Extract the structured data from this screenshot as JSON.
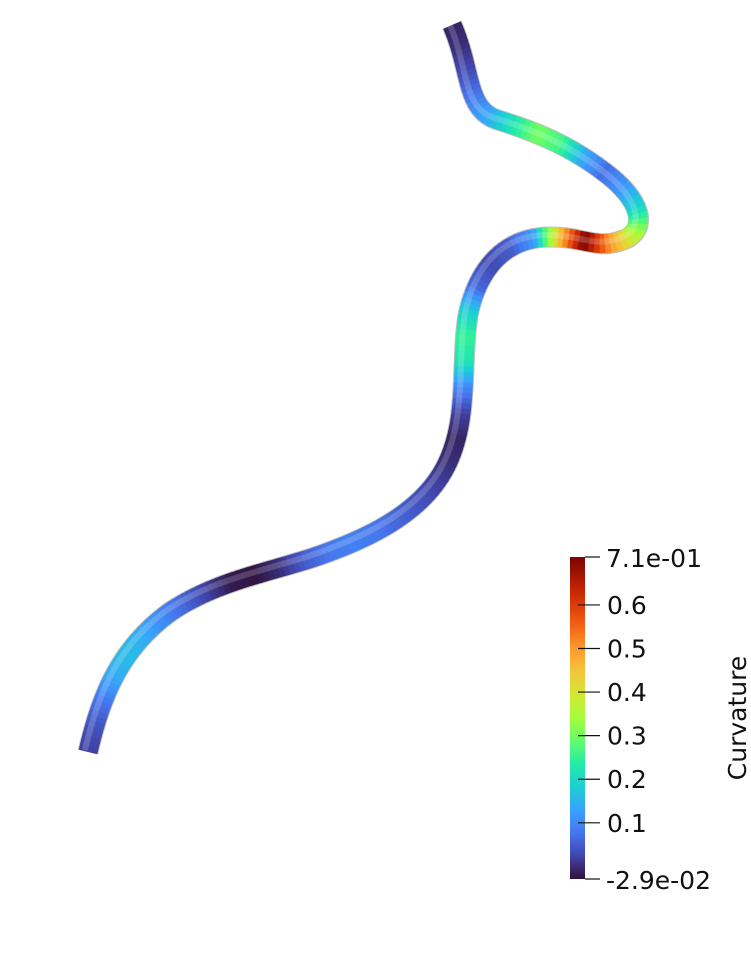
{
  "scalar_bar": {
    "title": "Curvature",
    "max_label": "7.1e-01",
    "min_label": "-2.9e-02",
    "range": [
      -0.029,
      0.71
    ],
    "ticks": [
      {
        "value": 0.1,
        "label": "0.1"
      },
      {
        "value": 0.2,
        "label": "0.2"
      },
      {
        "value": 0.3,
        "label": "0.3"
      },
      {
        "value": 0.4,
        "label": "0.4"
      },
      {
        "value": 0.5,
        "label": "0.5"
      },
      {
        "value": 0.6,
        "label": "0.6"
      }
    ],
    "colormap": [
      "#30123b",
      "#4145ab",
      "#4675ed",
      "#39a2fc",
      "#1bcfd4",
      "#24eca6",
      "#61fc6c",
      "#a4fc3b",
      "#d1e834",
      "#f3c63a",
      "#fe9b2d",
      "#f36315",
      "#d93806",
      "#b11901",
      "#7a0403"
    ]
  },
  "tube": {
    "curvature_samples": [
      0.02,
      0.04,
      0.08,
      0.14,
      0.16,
      0.14,
      0.1,
      0.06,
      0.02,
      -0.02,
      -0.025,
      0.0,
      0.05,
      0.08,
      0.09,
      0.08,
      0.06,
      0.04,
      0.02,
      0.0,
      -0.01,
      0.02,
      0.1,
      0.22,
      0.25,
      0.18,
      0.06,
      0.03,
      0.05,
      0.12,
      0.45,
      0.71,
      0.5,
      0.36,
      0.2,
      0.12,
      0.07,
      0.14,
      0.26,
      0.3,
      0.22,
      0.14,
      0.08,
      0.03,
      0.0,
      -0.01
    ]
  }
}
